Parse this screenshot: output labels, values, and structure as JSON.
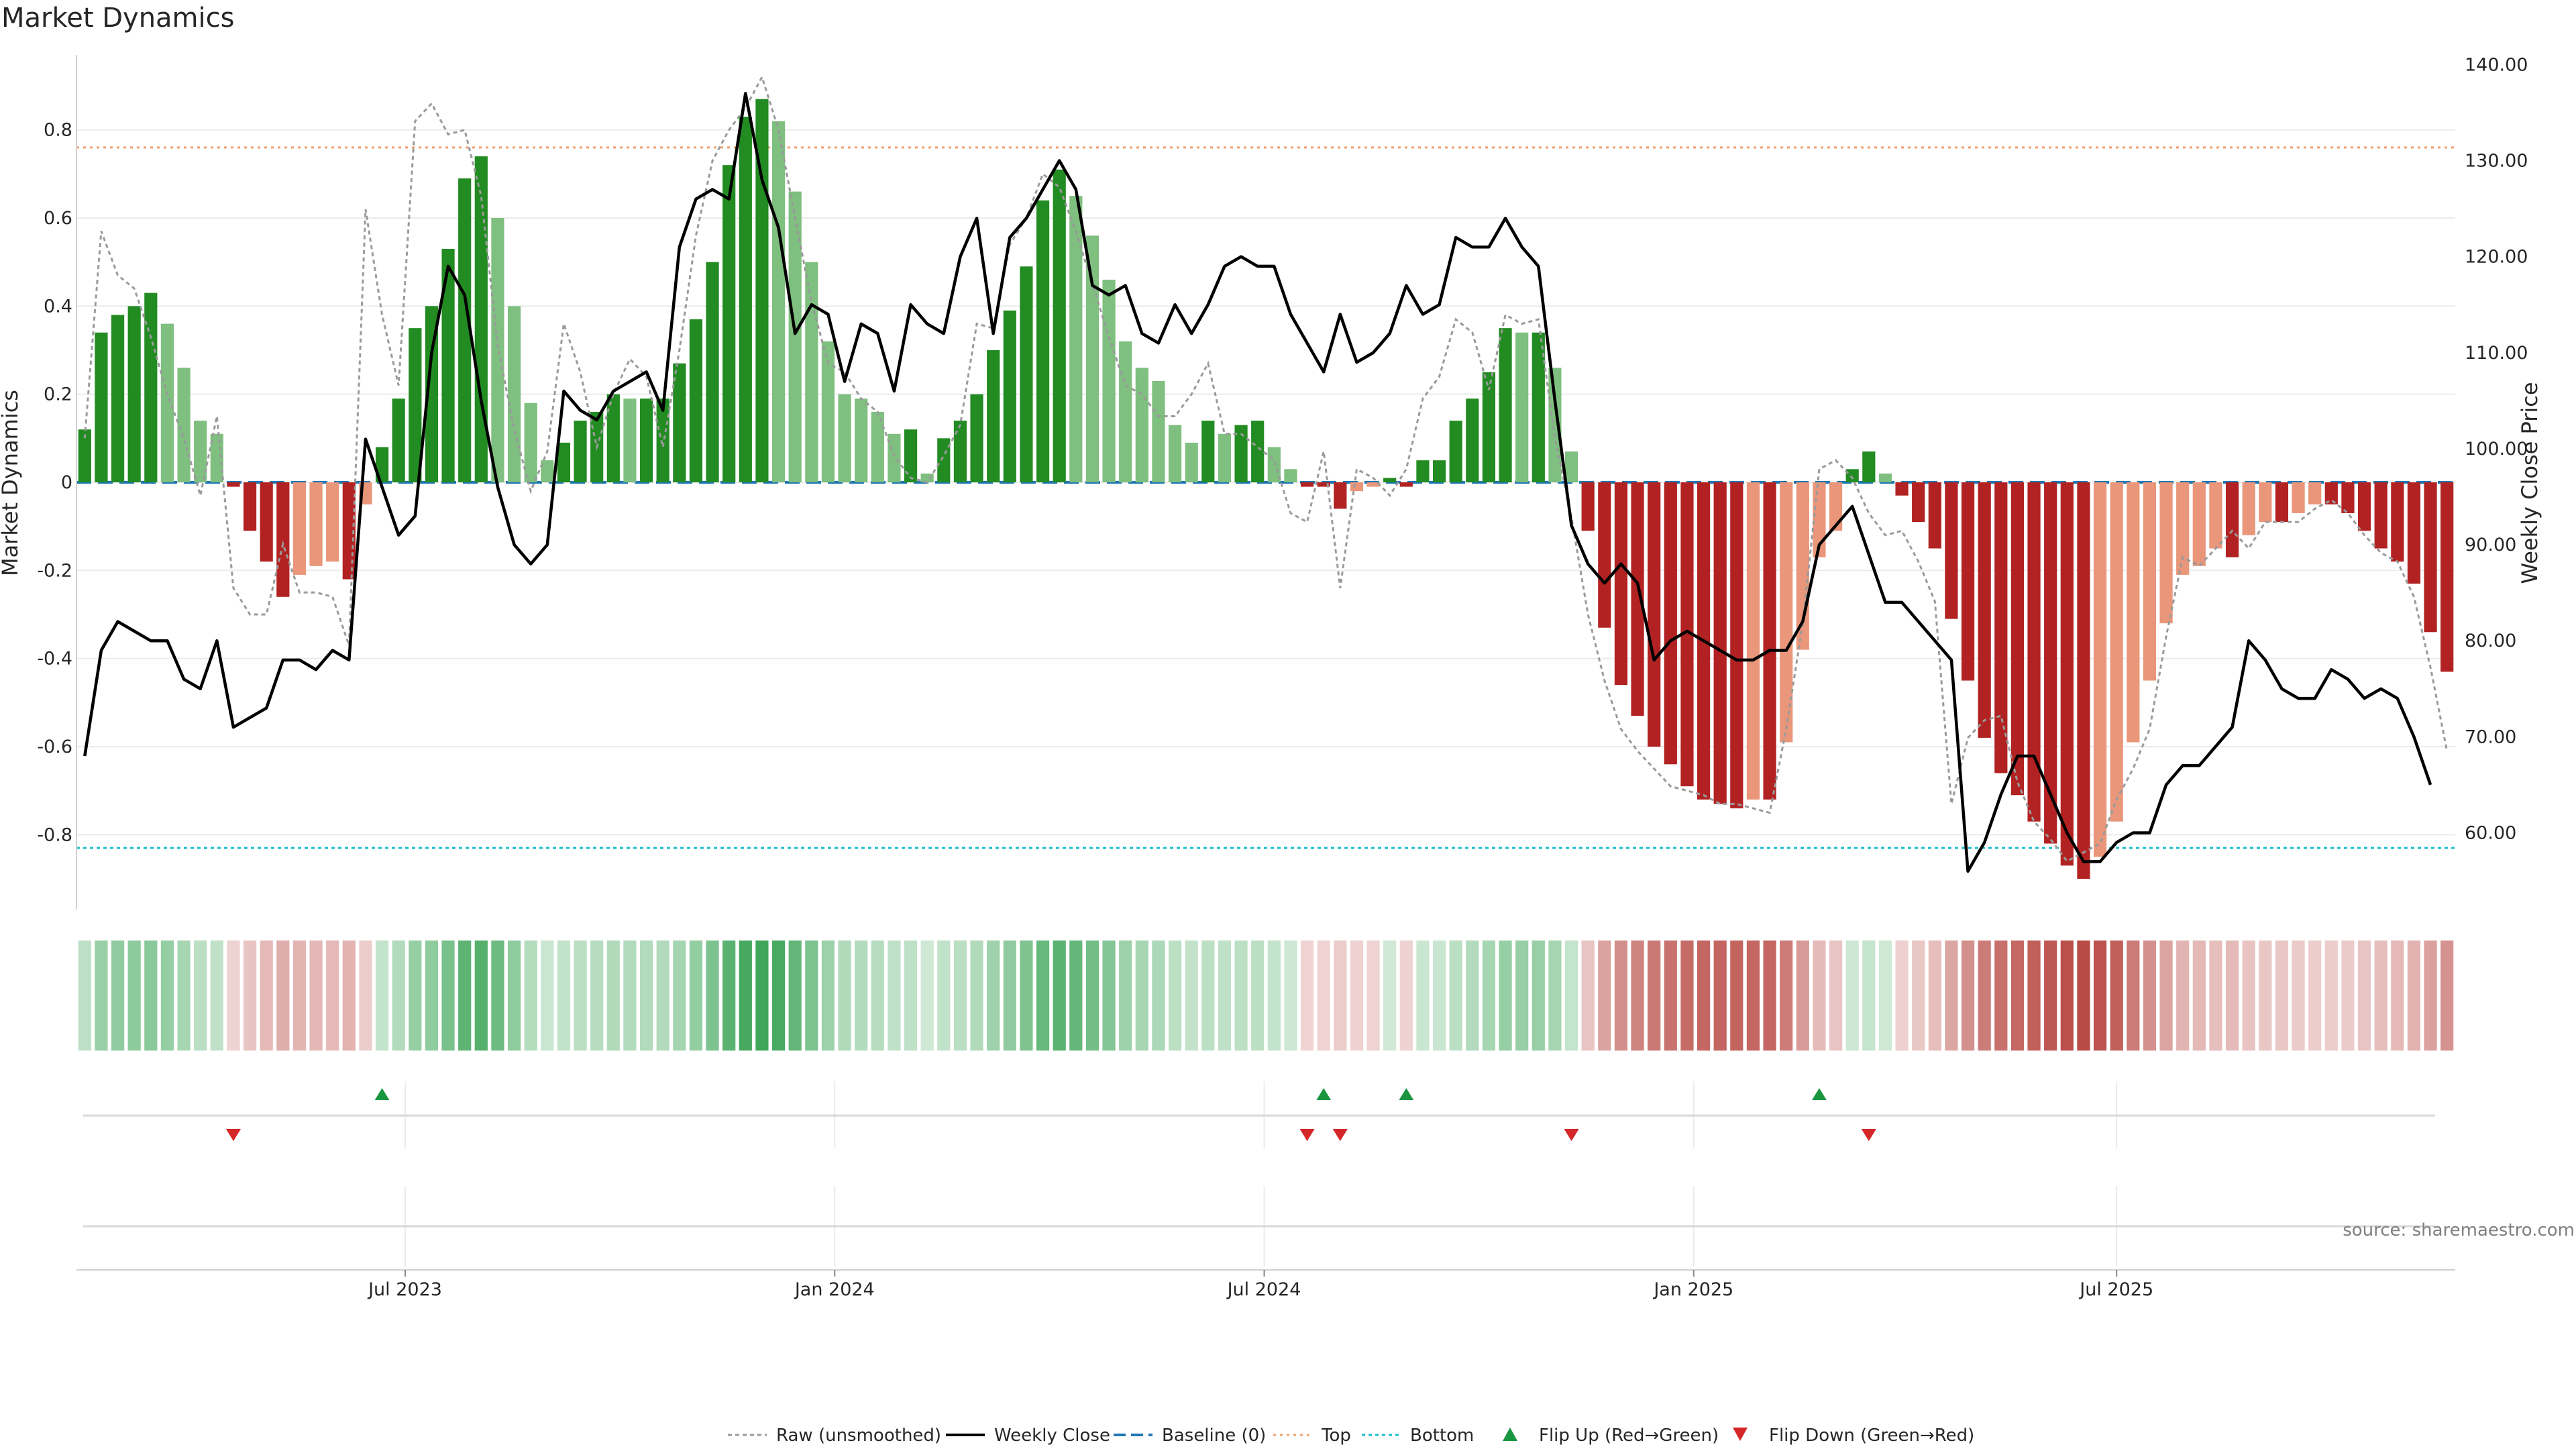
{
  "chart_data": {
    "type": "bar",
    "title": "Market Dynamics",
    "ylabel": "Market Dynamics",
    "ylabel_right": "Weekly Close Price",
    "ylim": [
      -0.97,
      0.97
    ],
    "ylim_right": [
      52,
      141
    ],
    "y_ticks": [
      "-0.8",
      "-0.6",
      "-0.4",
      "-0.2",
      "0",
      "0.2",
      "0.4",
      "0.6",
      "0.8"
    ],
    "y_ticks_right": [
      "60.00",
      "70.00",
      "80.00",
      "90.00",
      "100.00",
      "110.00",
      "120.00",
      "130.00",
      "140.00"
    ],
    "x_ticks": [
      "Jul 2023",
      "Jan 2024",
      "Jul 2024",
      "Jan 2025",
      "Jul 2025"
    ],
    "x_tick_index": [
      19.4,
      45.4,
      71.4,
      97.4,
      123
    ],
    "thresholds": {
      "top": 0.76,
      "bottom": -0.83,
      "baseline": 0
    },
    "source": "source: sharemaestro.com",
    "legend_position": "bottom-center",
    "grid": true,
    "legend": [
      {
        "key": "raw",
        "label": "Raw (unsmoothed)"
      },
      {
        "key": "close",
        "label": "Weekly Close"
      },
      {
        "key": "baseline",
        "label": "Baseline (0)"
      },
      {
        "key": "top",
        "label": "Top"
      },
      {
        "key": "bottom",
        "label": "Bottom"
      },
      {
        "key": "flipup",
        "label": "Flip Up (Red→Green)"
      },
      {
        "key": "flipdown",
        "label": "Flip Down (Green→Red)"
      }
    ],
    "colors": {
      "strong_up": "#228b22",
      "weak_up": "#7fbf7f",
      "strong_down": "#b22222",
      "weak_down": "#e9967a",
      "raw": "#9a9a9a",
      "close": "#000000",
      "baseline": "#1f77b4",
      "top": "#f0a070",
      "bottom": "#17becf",
      "flip_up": "#1a9641",
      "flip_down": "#d62728"
    },
    "flip_up_index": [
      18,
      75,
      80,
      105
    ],
    "flip_down_index": [
      9,
      74,
      76,
      90,
      108
    ],
    "series": [
      {
        "name": "Market Dynamics",
        "values": [
          0.12,
          0.34,
          0.38,
          0.4,
          0.43,
          0.36,
          0.26,
          0.14,
          0.11,
          -0.01,
          -0.11,
          -0.18,
          -0.26,
          -0.21,
          -0.19,
          -0.18,
          -0.22,
          -0.05,
          0.08,
          0.19,
          0.35,
          0.4,
          0.53,
          0.69,
          0.74,
          0.6,
          0.4,
          0.18,
          0.05,
          0.09,
          0.14,
          0.16,
          0.2,
          0.19,
          0.19,
          0.19,
          0.27,
          0.37,
          0.5,
          0.72,
          0.83,
          0.87,
          0.82,
          0.66,
          0.5,
          0.32,
          0.2,
          0.19,
          0.16,
          0.11,
          0.12,
          0.02,
          0.1,
          0.14,
          0.2,
          0.3,
          0.39,
          0.49,
          0.64,
          0.71,
          0.65,
          0.56,
          0.46,
          0.32,
          0.26,
          0.23,
          0.13,
          0.09,
          0.14,
          0.11,
          0.13,
          0.14,
          0.08,
          0.03,
          -0.01,
          -0.01,
          -0.06,
          -0.02,
          -0.01,
          0.01,
          -0.01,
          0.05,
          0.05,
          0.14,
          0.19,
          0.25,
          0.35,
          0.34,
          0.34,
          0.26,
          0.07,
          -0.11,
          -0.33,
          -0.46,
          -0.53,
          -0.6,
          -0.64,
          -0.69,
          -0.72,
          -0.73,
          -0.74,
          -0.72,
          -0.72,
          -0.59,
          -0.38,
          -0.17,
          -0.11,
          0.03,
          0.07,
          0.02,
          -0.03,
          -0.09,
          -0.15,
          -0.31,
          -0.45,
          -0.58,
          -0.66,
          -0.71,
          -0.77,
          -0.82,
          -0.87,
          -0.9,
          -0.85,
          -0.77,
          -0.59,
          -0.45,
          -0.32,
          -0.21,
          -0.19,
          -0.15,
          -0.17,
          -0.12,
          -0.09,
          -0.09,
          -0.07,
          -0.05,
          -0.05,
          -0.07,
          -0.11,
          -0.15,
          -0.18,
          -0.23,
          -0.34,
          -0.43
        ]
      },
      {
        "name": "Raw (unsmoothed)",
        "values": [
          0.1,
          0.57,
          0.47,
          0.44,
          0.33,
          0.2,
          0.1,
          -0.03,
          0.15,
          -0.24,
          -0.3,
          -0.3,
          -0.14,
          -0.25,
          -0.25,
          -0.26,
          -0.37,
          0.62,
          0.38,
          0.22,
          0.82,
          0.86,
          0.79,
          0.8,
          0.65,
          0.31,
          0.12,
          -0.02,
          0.07,
          0.36,
          0.25,
          0.08,
          0.2,
          0.28,
          0.24,
          0.08,
          0.3,
          0.56,
          0.73,
          0.8,
          0.85,
          0.92,
          0.8,
          0.6,
          0.41,
          0.27,
          0.25,
          0.19,
          0.16,
          0.06,
          0.01,
          0.0,
          0.06,
          0.13,
          0.36,
          0.35,
          0.54,
          0.6,
          0.7,
          0.67,
          0.57,
          0.45,
          0.33,
          0.22,
          0.2,
          0.15,
          0.15,
          0.2,
          0.27,
          0.11,
          0.11,
          0.08,
          0.05,
          -0.07,
          -0.09,
          0.07,
          -0.24,
          0.03,
          0.01,
          -0.03,
          0.03,
          0.19,
          0.24,
          0.37,
          0.34,
          0.21,
          0.38,
          0.36,
          0.37,
          0.1,
          -0.08,
          -0.3,
          -0.45,
          -0.56,
          -0.61,
          -0.65,
          -0.69,
          -0.7,
          -0.71,
          -0.73,
          -0.73,
          -0.74,
          -0.75,
          -0.56,
          -0.32,
          0.03,
          0.05,
          0.01,
          -0.07,
          -0.12,
          -0.11,
          -0.18,
          -0.27,
          -0.73,
          -0.58,
          -0.54,
          -0.53,
          -0.68,
          -0.77,
          -0.81,
          -0.86,
          -0.84,
          -0.82,
          -0.72,
          -0.65,
          -0.56,
          -0.35,
          -0.17,
          -0.19,
          -0.15,
          -0.11,
          -0.15,
          -0.09,
          -0.09,
          -0.09,
          -0.06,
          -0.04,
          -0.07,
          -0.12,
          -0.16,
          -0.18,
          -0.26,
          -0.42,
          -0.61
        ]
      },
      {
        "name": "Weekly Close",
        "values": [
          68,
          79,
          82,
          81,
          80,
          80,
          76,
          75,
          80,
          71,
          72,
          73,
          78,
          78,
          77,
          79,
          78,
          101,
          96,
          91,
          93,
          110,
          119,
          116,
          105,
          96,
          90,
          88,
          90,
          106,
          104,
          103,
          106,
          107,
          108,
          104,
          121,
          126,
          127,
          126,
          137,
          128,
          123,
          112,
          115,
          114,
          107,
          113,
          112,
          106,
          115,
          113,
          112,
          120,
          124,
          112,
          122,
          124,
          127,
          130,
          127,
          117,
          116,
          117,
          112,
          111,
          115,
          112,
          115,
          119,
          120,
          119,
          119,
          114,
          111,
          108,
          114,
          109,
          110,
          112,
          117,
          114,
          115,
          122,
          121,
          121,
          124,
          121,
          119,
          105,
          92,
          88,
          86,
          88,
          86,
          78,
          80,
          81,
          80,
          79,
          78,
          78,
          79,
          79,
          82,
          90,
          92,
          94,
          89,
          84,
          84,
          82,
          80,
          78,
          56,
          59,
          64,
          68,
          68,
          64,
          60,
          57,
          57,
          59,
          60,
          60,
          65,
          67,
          67,
          69,
          71,
          80,
          78,
          75,
          74,
          74,
          77,
          76,
          74,
          75,
          74,
          70,
          65
        ]
      }
    ]
  }
}
